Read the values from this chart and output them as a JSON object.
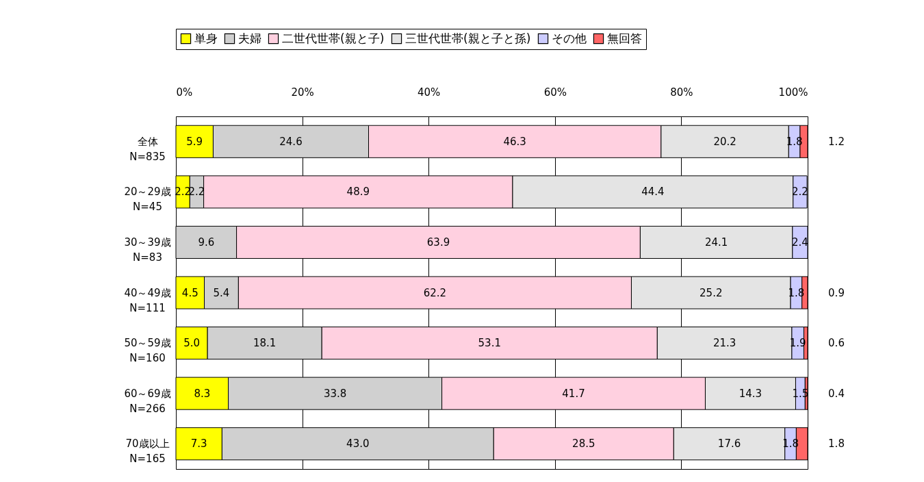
{
  "chart_data": {
    "type": "bar",
    "orientation": "horizontal",
    "stacked": true,
    "legend": "top",
    "grid": "x",
    "categories": [
      "全体\nN=835",
      "20～29歳\nN=45",
      "30～39歳\nN=83",
      "40～49歳\nN=111",
      "50～59歳\nN=160",
      "60～69歳\nN=266",
      "70歳以上\nN=165"
    ],
    "xlim": [
      0,
      100
    ],
    "xticks": [
      {
        "value": 0,
        "label": "0%"
      },
      {
        "value": 20,
        "label": "20%"
      },
      {
        "value": 40,
        "label": "40%"
      },
      {
        "value": 60,
        "label": "60%"
      },
      {
        "value": 80,
        "label": "80%"
      },
      {
        "value": 100,
        "label": "100%"
      }
    ],
    "series": [
      {
        "name": "単身",
        "color": "#ffff00",
        "values": [
          5.9,
          2.2,
          null,
          4.5,
          5.0,
          8.3,
          7.3
        ],
        "value_labels": [
          "5.9",
          "2.2",
          null,
          "4.5",
          "5.0",
          "8.3",
          "7.3"
        ]
      },
      {
        "name": "夫婦",
        "color": "#d0d0d0",
        "values": [
          24.6,
          2.2,
          9.6,
          5.4,
          18.1,
          33.8,
          43.0
        ],
        "value_labels": [
          "24.6",
          "2.2",
          "9.6",
          "5.4",
          "18.1",
          "33.8",
          "43.0"
        ]
      },
      {
        "name": "二世代世帯(親と子)",
        "color": "#ffd0e0",
        "values": [
          46.3,
          48.9,
          63.9,
          62.2,
          53.1,
          41.7,
          28.5
        ],
        "value_labels": [
          "46.3",
          "48.9",
          "63.9",
          "62.2",
          "53.1",
          "41.7",
          "28.5"
        ]
      },
      {
        "name": "三世代世帯(親と子と孫)",
        "color": "#e4e4e4",
        "values": [
          20.2,
          44.4,
          24.1,
          25.2,
          21.3,
          14.3,
          17.6
        ],
        "value_labels": [
          "20.2",
          "44.4",
          "24.1",
          "25.2",
          "21.3",
          "14.3",
          "17.6"
        ]
      },
      {
        "name": "その他",
        "color": "#ccccff",
        "values": [
          1.8,
          2.2,
          2.4,
          1.8,
          1.9,
          1.5,
          1.8
        ],
        "value_labels": [
          "1.8",
          "2.2",
          "2.4",
          "1.8",
          "1.9",
          "1.5",
          "1.8"
        ]
      },
      {
        "name": "無回答",
        "color": "#ff6666",
        "values": [
          1.2,
          null,
          null,
          0.9,
          0.6,
          0.4,
          1.8
        ],
        "value_labels": [
          "1.2",
          null,
          null,
          "0.9",
          "0.6",
          "0.4",
          "1.8"
        ]
      }
    ]
  }
}
